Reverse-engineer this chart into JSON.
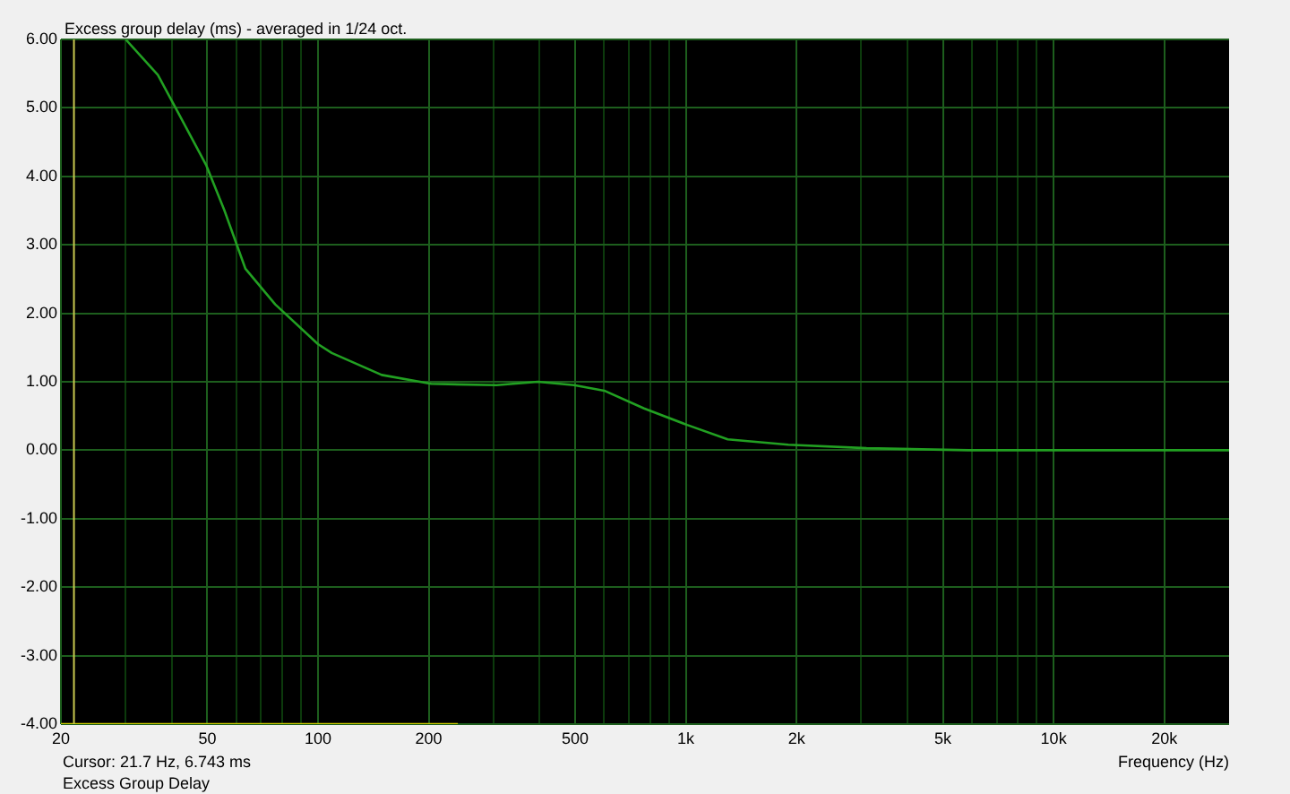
{
  "chart_data": {
    "type": "line",
    "title": "Excess group delay (ms) - averaged in 1/24 oct.",
    "xlabel": "Frequency (Hz)",
    "annotations": [
      "Cursor: 21.7 Hz, 6.743 ms",
      "Excess Group Delay"
    ],
    "log": "x",
    "grid": true,
    "legend": false,
    "marker": "none",
    "line_style": "solid",
    "xlim": [
      20,
      30000
    ],
    "xticks": [
      20,
      {
        "value": 30,
        "label": null
      },
      {
        "value": 40,
        "label": null
      },
      50,
      {
        "value": 60,
        "label": null
      },
      {
        "value": 70,
        "label": null
      },
      {
        "value": 80,
        "label": null
      },
      {
        "value": 90,
        "label": null
      },
      100,
      200,
      {
        "value": 300,
        "label": null
      },
      {
        "value": 400,
        "label": null
      },
      500,
      {
        "value": 600,
        "label": null
      },
      {
        "value": 700,
        "label": null
      },
      {
        "value": 800,
        "label": null
      },
      {
        "value": 900,
        "label": null
      },
      {
        "value": 1000,
        "label": "1k"
      },
      {
        "value": 2000,
        "label": "2k"
      },
      {
        "value": 3000,
        "label": null
      },
      {
        "value": 4000,
        "label": null
      },
      {
        "value": 5000,
        "label": "5k"
      },
      {
        "value": 6000,
        "label": null
      },
      {
        "value": 7000,
        "label": null
      },
      {
        "value": 8000,
        "label": null
      },
      {
        "value": 9000,
        "label": null
      },
      {
        "value": 10000,
        "label": "10k"
      },
      {
        "value": 20000,
        "label": "20k"
      }
    ],
    "ylim": [
      -4,
      6
    ],
    "yticks": [
      {
        "value": -4,
        "label": "-4.00"
      },
      {
        "value": -3,
        "label": "-3.00"
      },
      {
        "value": -2,
        "label": "-2.00"
      },
      {
        "value": -1,
        "label": "-1.00"
      },
      {
        "value": 0,
        "label": "0.00"
      },
      {
        "value": 1,
        "label": "1.00"
      },
      {
        "value": 2,
        "label": "2.00"
      },
      {
        "value": 3,
        "label": "3.00"
      },
      {
        "value": 4,
        "label": "4.00"
      },
      {
        "value": 5,
        "label": "5.00"
      },
      {
        "value": 6,
        "label": "6.00"
      }
    ],
    "ref_lines": [
      {
        "axis": "x",
        "value": 21.7,
        "color": "#c8c850"
      }
    ],
    "series": [
      {
        "color": "#22a022",
        "x": [
          30,
          36.7,
          41,
          49.6,
          55.6,
          63.5,
          76.5,
          100,
          109,
          149,
          203,
          306,
          396,
          497,
          600,
          770,
          1008,
          1300,
          1900,
          3100,
          5870,
          10000,
          30000
        ],
        "values": [
          6.0,
          5.48,
          5.0,
          4.17,
          3.51,
          2.65,
          2.13,
          1.55,
          1.42,
          1.1,
          0.97,
          0.95,
          1.0,
          0.95,
          0.87,
          0.61,
          0.37,
          0.16,
          0.08,
          0.03,
          0.0,
          0.0,
          0.0
        ]
      },
      {
        "color": "#c8c800",
        "x": [
          20,
          240
        ],
        "values": [
          -4,
          -4
        ]
      }
    ]
  }
}
